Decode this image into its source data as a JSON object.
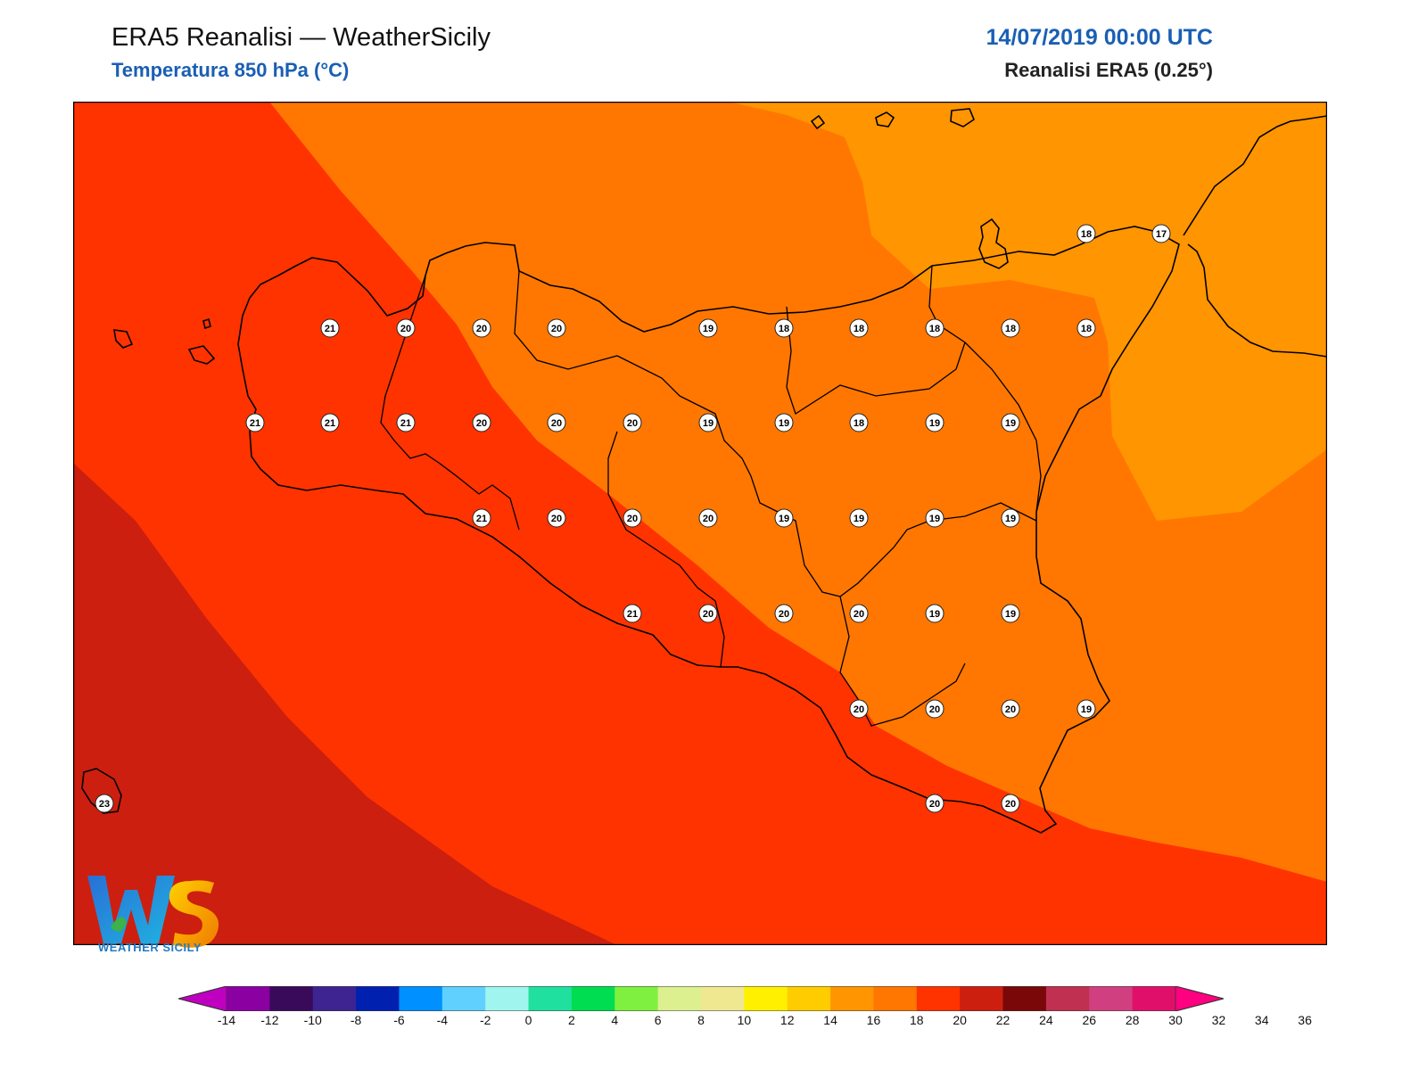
{
  "header": {
    "title": "ERA5 Reanalisi — WeatherSicily",
    "subtitle": "Temperatura 850 hPa (°C)",
    "date": "14/07/2019 00:00 UTC",
    "source": "Reanalisi ERA5 (0.25°)"
  },
  "logo": {
    "text": "WEATHER SICILY"
  },
  "colors": {
    "band_16_18": "#ff9500",
    "band_18_20": "#ff7700",
    "band_20_22": "#ff3300",
    "band_22_24": "#cc1f0f",
    "station_fill": "#ffffff",
    "coast": "#000000"
  },
  "colorbar": {
    "ticks": [
      "-14",
      "-12",
      "-10",
      "-8",
      "-6",
      "-4",
      "-2",
      "0",
      "2",
      "4",
      "6",
      "8",
      "10",
      "12",
      "14",
      "16",
      "18",
      "20",
      "22",
      "24",
      "26",
      "28",
      "30",
      "32",
      "34",
      "36"
    ],
    "colors": [
      "#c000c0",
      "#8a00a0",
      "#3a0a5a",
      "#3d2490",
      "#0020b0",
      "#0090ff",
      "#60d0ff",
      "#a0f5ee",
      "#20e0a0",
      "#00dd50",
      "#80f040",
      "#dcf090",
      "#f0e890",
      "#fff000",
      "#ffcc00",
      "#ff9500",
      "#ff7700",
      "#ff3300",
      "#cc1f0f",
      "#7a0808",
      "#c03050",
      "#d04080",
      "#e0106a",
      "#ff0080"
    ]
  },
  "map_data": {
    "stations": [
      {
        "value": "21"
      },
      {
        "value": "20"
      },
      {
        "value": "20"
      },
      {
        "value": "20"
      },
      {
        "value": "19"
      },
      {
        "value": "18"
      },
      {
        "value": "18"
      },
      {
        "value": "18"
      },
      {
        "value": "18"
      },
      {
        "value": "18"
      },
      {
        "value": "21"
      },
      {
        "value": "21"
      },
      {
        "value": "21"
      },
      {
        "value": "20"
      },
      {
        "value": "20"
      },
      {
        "value": "20"
      },
      {
        "value": "19"
      },
      {
        "value": "19"
      },
      {
        "value": "18"
      },
      {
        "value": "19"
      },
      {
        "value": "19"
      },
      {
        "value": "21"
      },
      {
        "value": "20"
      },
      {
        "value": "20"
      },
      {
        "value": "20"
      },
      {
        "value": "19"
      },
      {
        "value": "19"
      },
      {
        "value": "19"
      },
      {
        "value": "19"
      },
      {
        "value": "21"
      },
      {
        "value": "20"
      },
      {
        "value": "20"
      },
      {
        "value": "20"
      },
      {
        "value": "19"
      },
      {
        "value": "19"
      },
      {
        "value": "20"
      },
      {
        "value": "20"
      },
      {
        "value": "20"
      },
      {
        "value": "19"
      },
      {
        "value": "20"
      },
      {
        "value": "20"
      },
      {
        "value": "18"
      },
      {
        "value": "17"
      },
      {
        "value": "23"
      }
    ]
  }
}
